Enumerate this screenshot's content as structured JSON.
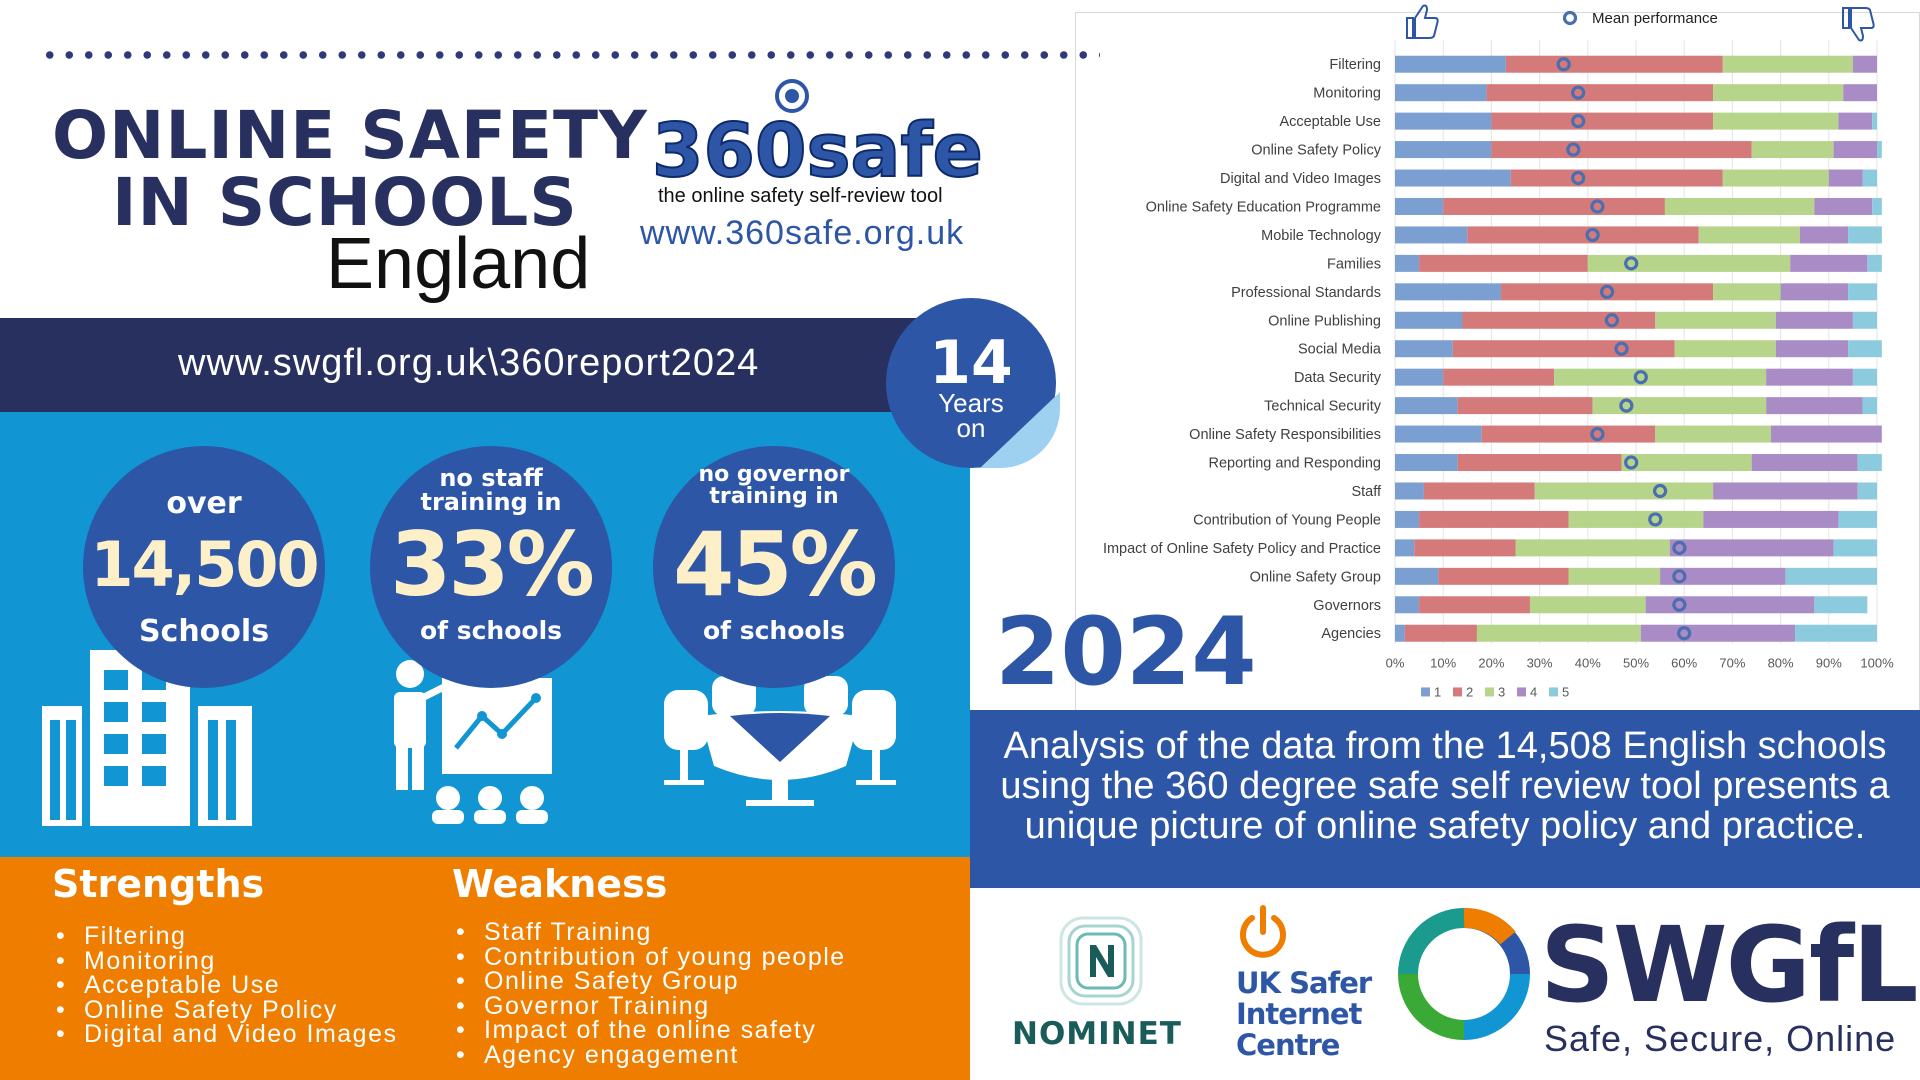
{
  "header": {
    "title_line1": "ONLINE SAFETY",
    "title_line2": "IN SCHOOLS",
    "title_line3": "England"
  },
  "logo_360": {
    "brand": "360safe",
    "tagline": "the online safety self-review tool",
    "url": "www.360safe.org.uk"
  },
  "report_url": "www.swgfl.org.uk\\360report2024",
  "badge": {
    "number": "14",
    "line1": "Years",
    "line2": "on"
  },
  "stats": [
    {
      "top": "over",
      "big": "14,500",
      "bottom": "Schools"
    },
    {
      "top1": "no staff",
      "top2": "training in",
      "big": "33%",
      "bottom": "of schools"
    },
    {
      "top1": "no governor",
      "top2": "training in",
      "big": "45%",
      "bottom": "of schools"
    }
  ],
  "strengths": {
    "heading": "Strengths",
    "items": [
      "Filtering",
      "Monitoring",
      "Acceptable Use",
      "Online Safety Policy",
      "Digital and Video Images"
    ]
  },
  "weakness": {
    "heading": "Weakness",
    "items": [
      "Staff Training",
      "Contribution of young people",
      "Online Safety Group",
      "Governor Training",
      "Impact of the online safety",
      "Agency engagement"
    ]
  },
  "year": "2024",
  "analysis": "Analysis of the data from the 14,508 English schools using the 360 degree safe self review tool presents a unique picture of online safety policy and practice.",
  "logos": {
    "nominet": "NOMINET",
    "uksic_line1": "UK Safer",
    "uksic_line2": "Internet",
    "uksic_line3": "Centre",
    "swgfl": "SWGfL",
    "swgfl_tag": "Safe, Secure, Online"
  },
  "colors": {
    "navy": "#27305e",
    "royal": "#2e56a6",
    "sky": "#1295d3",
    "orange": "#ef7d00",
    "s1": "#7b9fd0",
    "s2": "#d47a7a",
    "s3": "#b6d48a",
    "s4": "#a98cc6",
    "s5": "#8ccbdd"
  },
  "chart_data": {
    "type": "bar",
    "orientation": "horizontal",
    "stacked": true,
    "categories": [
      "Filtering",
      "Monitoring",
      "Acceptable Use",
      "Online Safety Policy",
      "Digital and Video Images",
      "Online Safety Education Programme",
      "Mobile Technology",
      "Families",
      "Professional Standards",
      "Online Publishing",
      "Social Media",
      "Data Security",
      "Technical Security",
      "Online Safety Responsibilities",
      "Reporting and Responding",
      "Staff",
      "Contribution of Young People",
      "Impact of Online Safety Policy and Practice",
      "Online Safety Group",
      "Governors",
      "Agencies"
    ],
    "series": [
      {
        "name": "1",
        "values": [
          23,
          19,
          20,
          20,
          24,
          10,
          15,
          5,
          22,
          14,
          12,
          10,
          13,
          18,
          13,
          6,
          5,
          4,
          9,
          5,
          2
        ]
      },
      {
        "name": "2",
        "values": [
          45,
          47,
          46,
          54,
          44,
          46,
          48,
          35,
          44,
          40,
          46,
          23,
          28,
          36,
          34,
          23,
          31,
          21,
          27,
          23,
          15
        ]
      },
      {
        "name": "3",
        "values": [
          27,
          27,
          26,
          17,
          22,
          31,
          21,
          42,
          14,
          25,
          21,
          44,
          36,
          24,
          27,
          37,
          28,
          32,
          19,
          24,
          34
        ]
      },
      {
        "name": "4",
        "values": [
          5,
          7,
          7,
          9,
          7,
          12,
          10,
          16,
          14,
          16,
          15,
          18,
          20,
          23,
          22,
          30,
          28,
          34,
          26,
          35,
          32
        ]
      },
      {
        "name": "5",
        "values": [
          0,
          0,
          1,
          1,
          3,
          2,
          7,
          3,
          6,
          5,
          7,
          5,
          3,
          0,
          5,
          4,
          8,
          9,
          19,
          11,
          17
        ]
      }
    ],
    "mean_performance": [
      35,
      38,
      38,
      37,
      38,
      42,
      41,
      49,
      44,
      45,
      47,
      51,
      48,
      42,
      49,
      55,
      54,
      59,
      59,
      59,
      60
    ],
    "mean_label": "Mean performance",
    "xticks": [
      "0%",
      "10%",
      "20%",
      "30%",
      "40%",
      "50%",
      "60%",
      "70%",
      "80%",
      "90%",
      "100%"
    ],
    "xlim": [
      0,
      100
    ],
    "legend": "bottom",
    "grid": true
  }
}
